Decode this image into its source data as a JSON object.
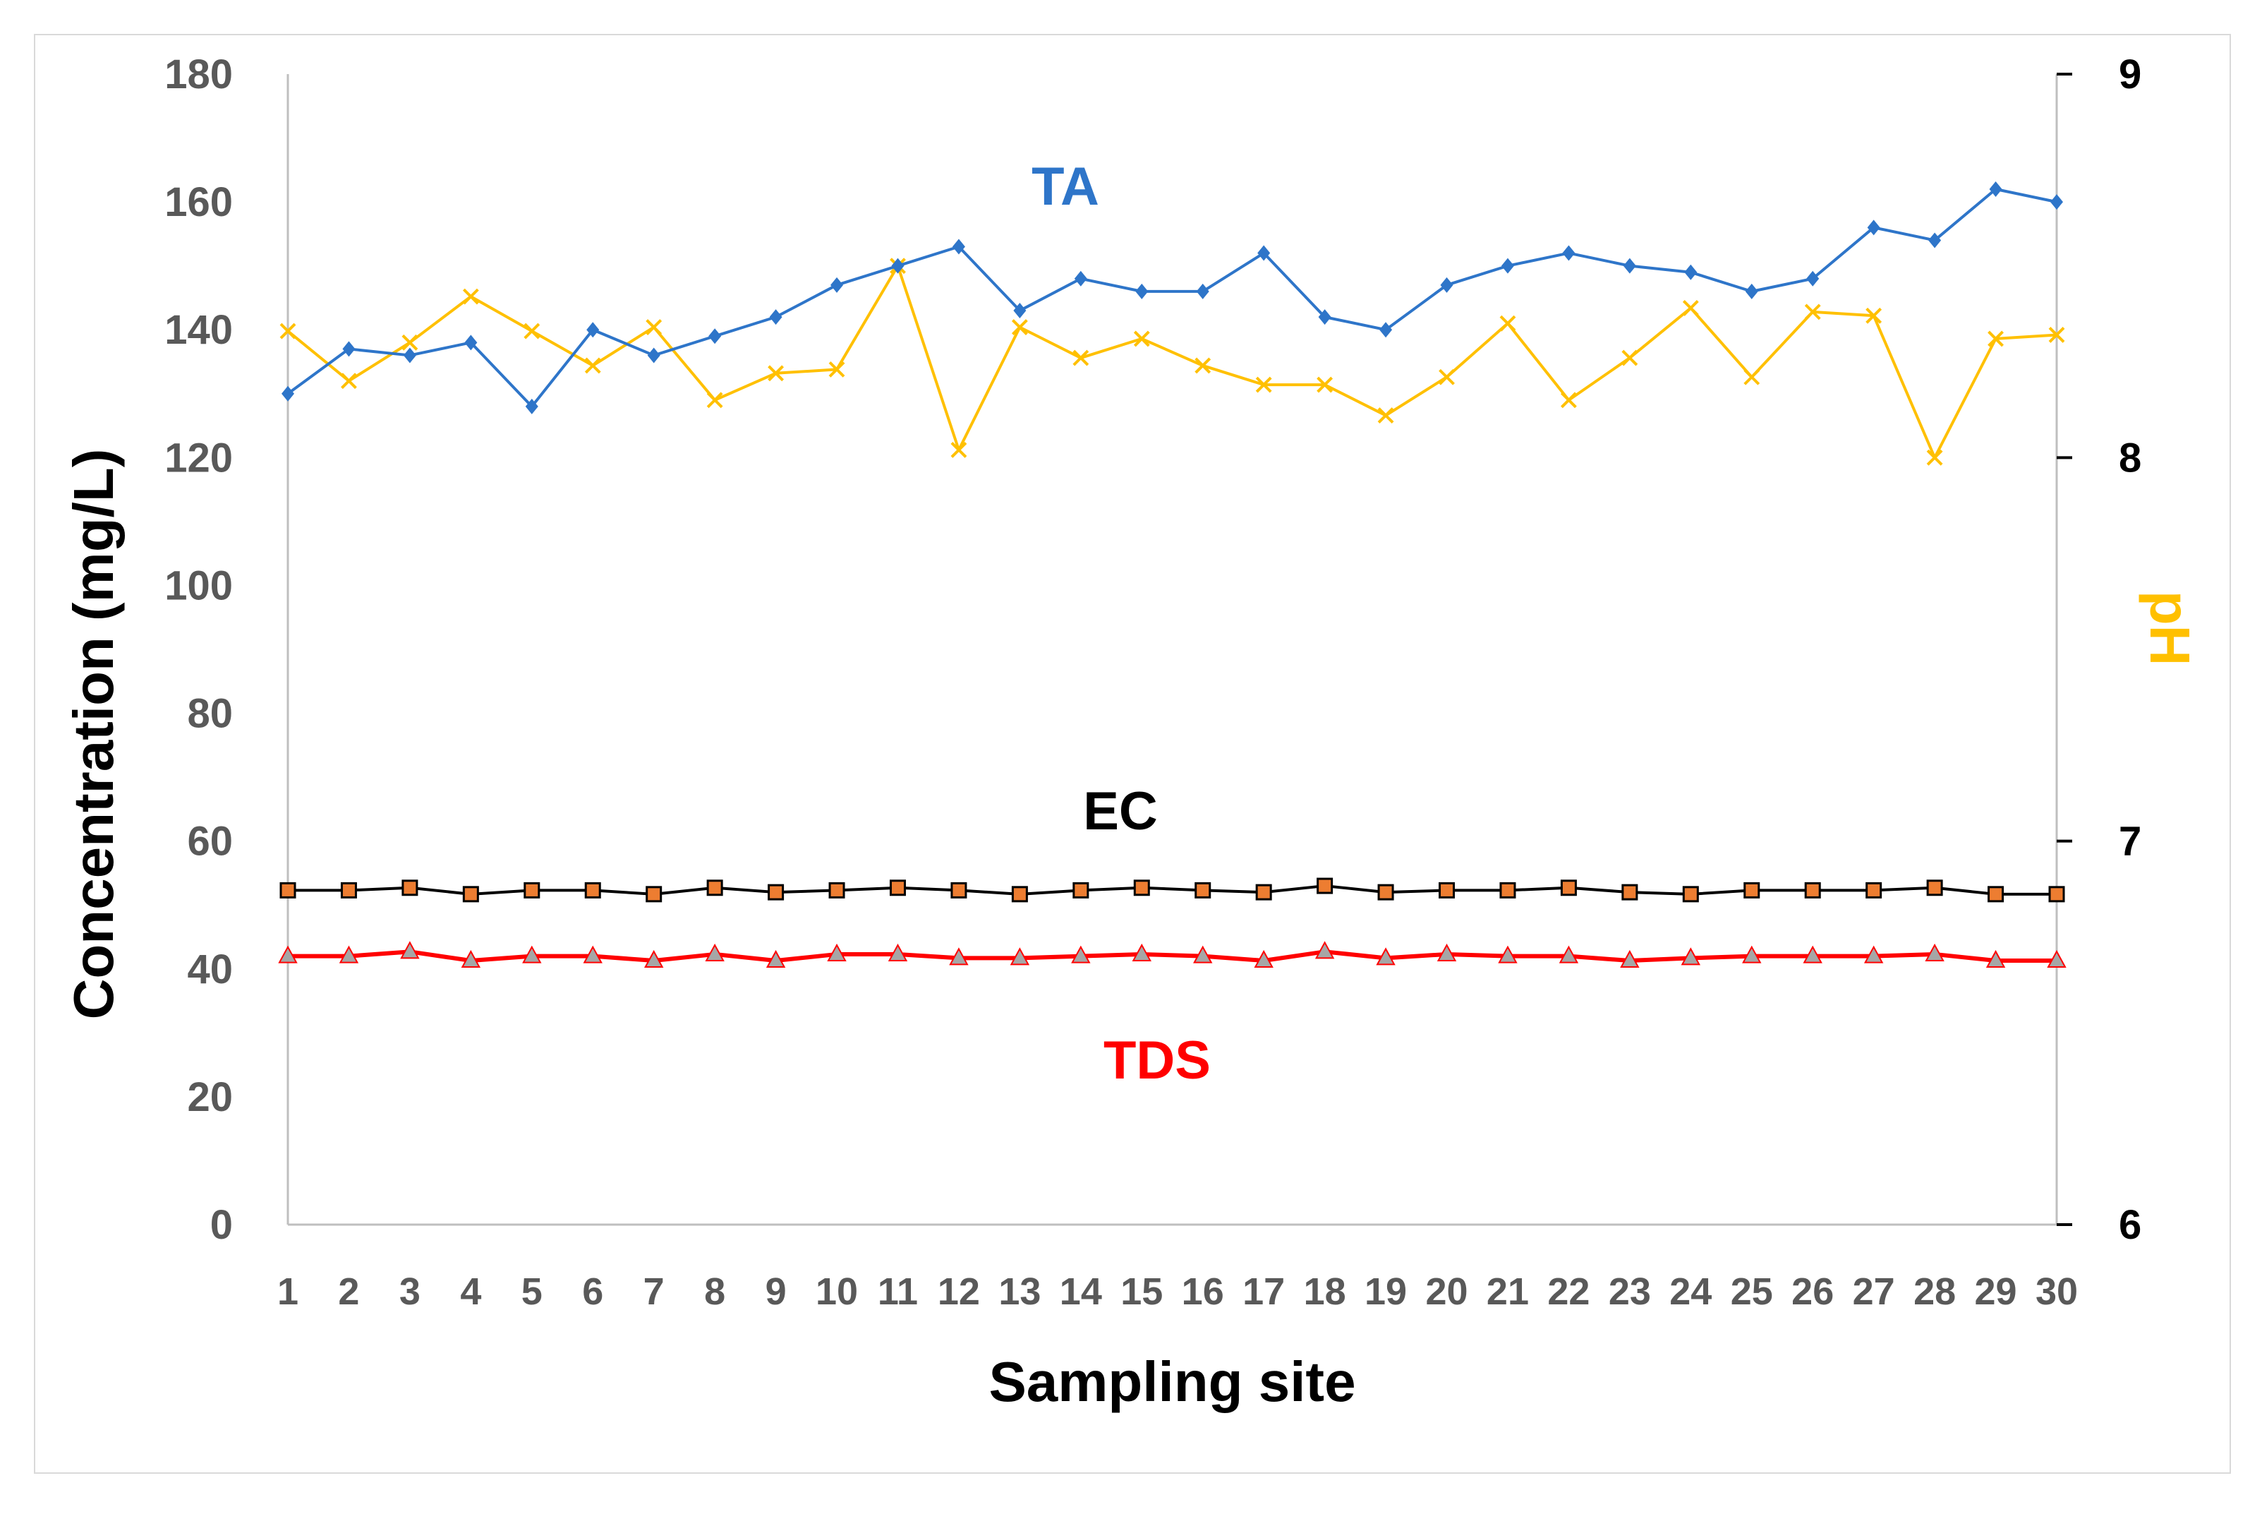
{
  "chart_data": {
    "type": "line",
    "title": "",
    "xlabel": "Sampling site",
    "ylabel": "Concentration (mg/L)",
    "y2label": "pH",
    "categories": [
      "1",
      "2",
      "3",
      "4",
      "5",
      "6",
      "7",
      "8",
      "9",
      "10",
      "11",
      "12",
      "13",
      "14",
      "15",
      "16",
      "17",
      "18",
      "19",
      "20",
      "21",
      "22",
      "23",
      "24",
      "25",
      "26",
      "27",
      "28",
      "29",
      "30"
    ],
    "ylim": [
      0,
      180
    ],
    "y_ticks": [
      "0",
      "20",
      "40",
      "60",
      "80",
      "100",
      "120",
      "140",
      "160",
      "180"
    ],
    "y2lim": [
      6,
      9
    ],
    "y2_ticks": [
      "6",
      "7",
      "8",
      "9"
    ],
    "series": [
      {
        "name": "TA",
        "axis": "left",
        "color": "#2e75c9",
        "marker": "diamond",
        "values": [
          130,
          137,
          136,
          138,
          128,
          140,
          136,
          139,
          142,
          147,
          150,
          153,
          143,
          148,
          146,
          146,
          152,
          142,
          140,
          147,
          150,
          152,
          150,
          149,
          146,
          148,
          156,
          154,
          162,
          160
        ]
      },
      {
        "name": "pH",
        "axis": "right",
        "color": "#ffc000",
        "marker": "x",
        "values": [
          8.33,
          8.2,
          8.3,
          8.42,
          8.33,
          8.24,
          8.34,
          8.15,
          8.22,
          8.23,
          8.5,
          8.02,
          8.34,
          8.26,
          8.31,
          8.24,
          8.19,
          8.19,
          8.11,
          8.21,
          8.35,
          8.15,
          8.26,
          8.39,
          8.21,
          8.38,
          8.37,
          8.0,
          8.31,
          8.32
        ]
      },
      {
        "name": "EC",
        "axis": "left",
        "color": "#000000",
        "marker": "square",
        "marker_fill": "#ed7d31",
        "values": [
          52.3,
          52.3,
          52.7,
          51.7,
          52.3,
          52.3,
          51.7,
          52.7,
          52.0,
          52.3,
          52.7,
          52.3,
          51.7,
          52.3,
          52.7,
          52.3,
          52.0,
          53.0,
          52.0,
          52.3,
          52.3,
          52.7,
          52.0,
          51.7,
          52.3,
          52.3,
          52.3,
          52.7,
          51.7,
          51.7
        ]
      },
      {
        "name": "TDS",
        "axis": "left",
        "color": "#ff0000",
        "marker": "triangle",
        "marker_fill": "#a6a6a6",
        "values": [
          42.0,
          42.0,
          42.7,
          41.3,
          42.0,
          42.0,
          41.3,
          42.3,
          41.3,
          42.3,
          42.3,
          41.7,
          41.7,
          42.0,
          42.3,
          42.0,
          41.3,
          42.7,
          41.7,
          42.3,
          42.0,
          42.0,
          41.3,
          41.7,
          42.0,
          42.0,
          42.0,
          42.3,
          41.3,
          41.3
        ]
      }
    ],
    "annotations": [
      {
        "text": "TA",
        "series": "TA",
        "color": "#2e75c9"
      },
      {
        "text": "EC",
        "series": "EC",
        "color": "#000000"
      },
      {
        "text": "TDS",
        "series": "TDS",
        "color": "#ff0000"
      }
    ],
    "grid": false,
    "legend": "none"
  }
}
